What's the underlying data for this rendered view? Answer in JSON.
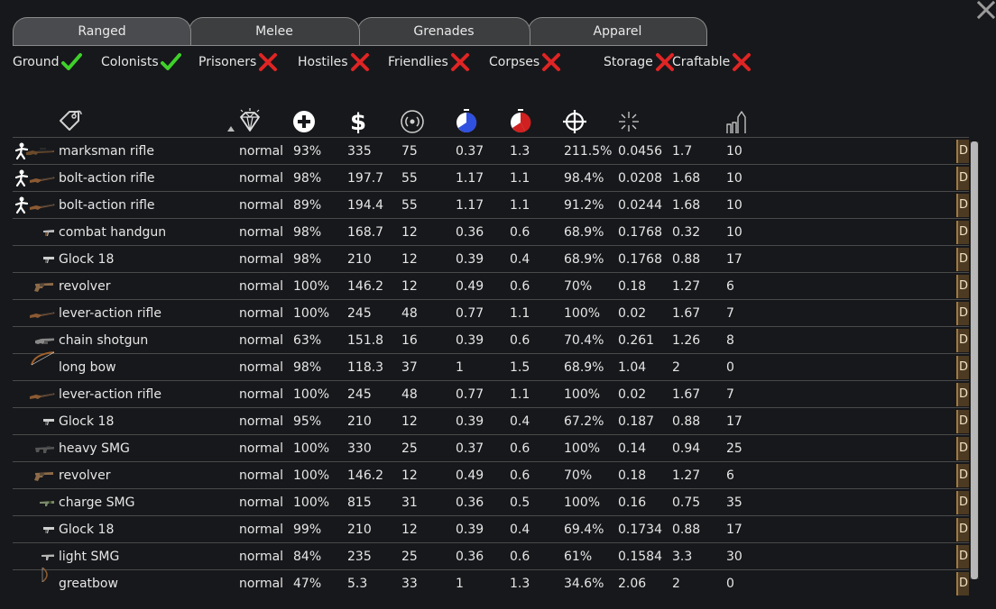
{
  "tabs": [
    {
      "label": "Ranged",
      "active": true
    },
    {
      "label": "Melee",
      "active": false
    },
    {
      "label": "Grenades",
      "active": false
    },
    {
      "label": "Apparel",
      "active": false
    }
  ],
  "filters": [
    {
      "label": "Ground",
      "state": "on"
    },
    {
      "label": "Colonists",
      "state": "on"
    },
    {
      "label": "Prisoners",
      "state": "off"
    },
    {
      "label": "Hostiles",
      "state": "off"
    },
    {
      "label": "Friendlies",
      "state": "off"
    },
    {
      "label": "Corpses",
      "state": "off"
    },
    {
      "label": "Storage",
      "state": "off"
    },
    {
      "label": "Craftable",
      "state": "off"
    }
  ],
  "columns": [
    "tag-icon",
    "quality-icon",
    "hitpoints-icon",
    "value-icon",
    "range-icon",
    "warmup-icon",
    "cooldown-icon",
    "accuracy-icon",
    "dispersion-icon",
    "burst-icon"
  ],
  "drop_label": "D",
  "rows": [
    {
      "pawn": true,
      "weapon": "rifle-long",
      "name": "marksman rifle",
      "quality": "normal",
      "hp": "93%",
      "value": "335",
      "range": "75",
      "warmup": "0.37",
      "cooldown": "1.3",
      "accuracy": "211.5%",
      "dispersion": "0.0456",
      "dps": "1.7",
      "burst": "10"
    },
    {
      "pawn": true,
      "weapon": "rifle",
      "name": "bolt-action rifle",
      "quality": "normal",
      "hp": "98%",
      "value": "197.7",
      "range": "55",
      "warmup": "1.17",
      "cooldown": "1.1",
      "accuracy": "98.4%",
      "dispersion": "0.0208",
      "dps": "1.68",
      "burst": "10"
    },
    {
      "pawn": true,
      "weapon": "rifle",
      "name": "bolt-action rifle",
      "quality": "normal",
      "hp": "89%",
      "value": "194.4",
      "range": "55",
      "warmup": "1.17",
      "cooldown": "1.1",
      "accuracy": "91.2%",
      "dispersion": "0.0244",
      "dps": "1.68",
      "burst": "10"
    },
    {
      "pawn": false,
      "weapon": "pistol-small",
      "name": "combat handgun",
      "quality": "normal",
      "hp": "98%",
      "value": "168.7",
      "range": "12",
      "warmup": "0.36",
      "cooldown": "0.6",
      "accuracy": "68.9%",
      "dispersion": "0.1768",
      "dps": "0.32",
      "burst": "10"
    },
    {
      "pawn": false,
      "weapon": "pistol",
      "name": "Glock 18",
      "quality": "normal",
      "hp": "98%",
      "value": "210",
      "range": "12",
      "warmup": "0.39",
      "cooldown": "0.4",
      "accuracy": "68.9%",
      "dispersion": "0.1768",
      "dps": "0.88",
      "burst": "17"
    },
    {
      "pawn": false,
      "weapon": "revolver",
      "name": "revolver",
      "quality": "normal",
      "hp": "100%",
      "value": "146.2",
      "range": "12",
      "warmup": "0.49",
      "cooldown": "0.6",
      "accuracy": "70%",
      "dispersion": "0.18",
      "dps": "1.27",
      "burst": "6"
    },
    {
      "pawn": false,
      "weapon": "rifle",
      "name": "lever-action rifle",
      "quality": "normal",
      "hp": "100%",
      "value": "245",
      "range": "48",
      "warmup": "0.77",
      "cooldown": "1.1",
      "accuracy": "100%",
      "dispersion": "0.02",
      "dps": "1.67",
      "burst": "7"
    },
    {
      "pawn": false,
      "weapon": "shotgun",
      "name": "chain shotgun",
      "quality": "normal",
      "hp": "63%",
      "value": "151.8",
      "range": "16",
      "warmup": "0.39",
      "cooldown": "0.6",
      "accuracy": "70.4%",
      "dispersion": "0.261",
      "dps": "1.26",
      "burst": "8"
    },
    {
      "pawn": false,
      "weapon": "bow",
      "name": "long bow",
      "quality": "normal",
      "hp": "98%",
      "value": "118.3",
      "range": "37",
      "warmup": "1",
      "cooldown": "1.5",
      "accuracy": "68.9%",
      "dispersion": "1.04",
      "dps": "2",
      "burst": "0"
    },
    {
      "pawn": false,
      "weapon": "rifle",
      "name": "lever-action rifle",
      "quality": "normal",
      "hp": "100%",
      "value": "245",
      "range": "48",
      "warmup": "0.77",
      "cooldown": "1.1",
      "accuracy": "100%",
      "dispersion": "0.02",
      "dps": "1.67",
      "burst": "7"
    },
    {
      "pawn": false,
      "weapon": "pistol",
      "name": "Glock 18",
      "quality": "normal",
      "hp": "95%",
      "value": "210",
      "range": "12",
      "warmup": "0.39",
      "cooldown": "0.4",
      "accuracy": "67.2%",
      "dispersion": "0.187",
      "dps": "0.88",
      "burst": "17"
    },
    {
      "pawn": false,
      "weapon": "smg",
      "name": "heavy SMG",
      "quality": "normal",
      "hp": "100%",
      "value": "330",
      "range": "25",
      "warmup": "0.37",
      "cooldown": "0.6",
      "accuracy": "100%",
      "dispersion": "0.14",
      "dps": "0.94",
      "burst": "25"
    },
    {
      "pawn": false,
      "weapon": "revolver",
      "name": "revolver",
      "quality": "normal",
      "hp": "100%",
      "value": "146.2",
      "range": "12",
      "warmup": "0.49",
      "cooldown": "0.6",
      "accuracy": "70%",
      "dispersion": "0.18",
      "dps": "1.27",
      "burst": "6"
    },
    {
      "pawn": false,
      "weapon": "smg-green",
      "name": "charge SMG",
      "quality": "normal",
      "hp": "100%",
      "value": "815",
      "range": "31",
      "warmup": "0.36",
      "cooldown": "0.5",
      "accuracy": "100%",
      "dispersion": "0.16",
      "dps": "0.75",
      "burst": "35"
    },
    {
      "pawn": false,
      "weapon": "pistol",
      "name": "Glock 18",
      "quality": "normal",
      "hp": "99%",
      "value": "210",
      "range": "12",
      "warmup": "0.39",
      "cooldown": "0.4",
      "accuracy": "69.4%",
      "dispersion": "0.1734",
      "dps": "0.88",
      "burst": "17"
    },
    {
      "pawn": false,
      "weapon": "smg-light",
      "name": "light SMG",
      "quality": "normal",
      "hp": "84%",
      "value": "235",
      "range": "25",
      "warmup": "0.36",
      "cooldown": "0.6",
      "accuracy": "61%",
      "dispersion": "0.1584",
      "dps": "3.3",
      "burst": "30"
    },
    {
      "pawn": false,
      "weapon": "greatbow",
      "name": "greatbow",
      "quality": "normal",
      "hp": "47%",
      "value": "5.3",
      "range": "33",
      "warmup": "1",
      "cooldown": "1.3",
      "accuracy": "34.6%",
      "dispersion": "2.06",
      "dps": "2",
      "burst": "0"
    }
  ],
  "colors": {
    "check": "#3fd12a",
    "cross": "#e02424",
    "warmup": "#3050e0",
    "cooldown": "#d02020"
  }
}
